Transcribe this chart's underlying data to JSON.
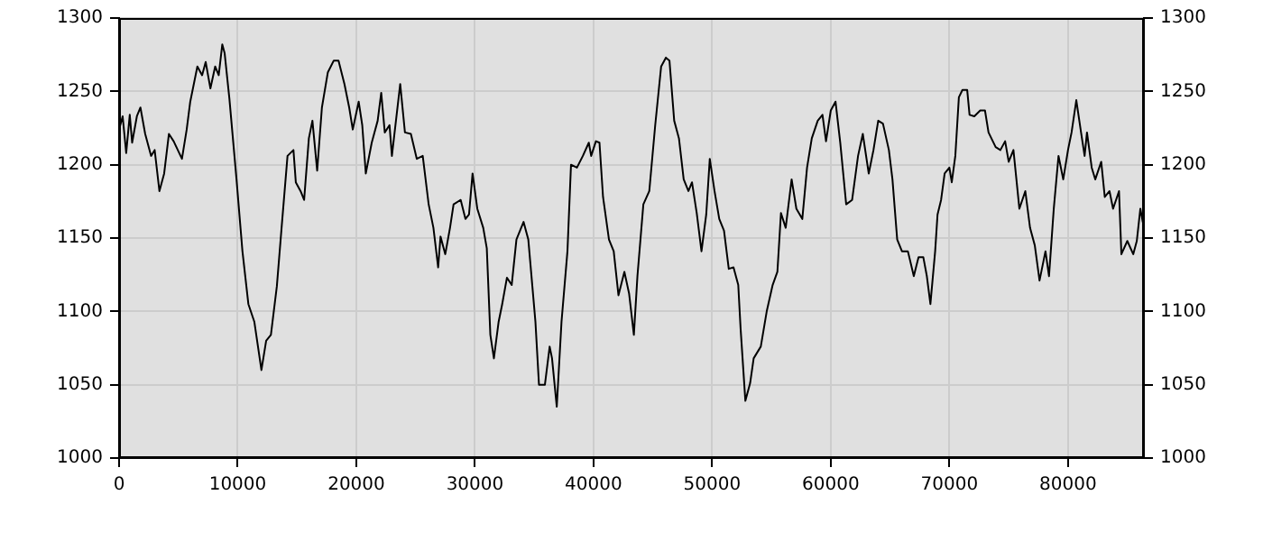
{
  "chart_data": {
    "type": "line",
    "xlim": [
      0,
      86400
    ],
    "xticks": [
      0,
      10000,
      20000,
      30000,
      40000,
      50000,
      60000,
      70000,
      80000
    ],
    "ylim": [
      1000,
      1300
    ],
    "yticks": [
      1000,
      1050,
      1100,
      1150,
      1200,
      1250,
      1300
    ],
    "y2lim": [
      1000,
      1300
    ],
    "y2ticks": [
      1000,
      1050,
      1100,
      1150,
      1200,
      1250,
      1300
    ],
    "grid": true,
    "legend": false,
    "marker": "none",
    "line_style": "solid",
    "x": [
      0,
      300,
      600,
      900,
      1100,
      1500,
      1800,
      2200,
      2700,
      3000,
      3400,
      3800,
      4200,
      4600,
      5300,
      5700,
      6000,
      6600,
      7000,
      7300,
      7700,
      8100,
      8400,
      8700,
      8900,
      9300,
      9900,
      10400,
      10900,
      11400,
      12000,
      12400,
      12800,
      13300,
      13700,
      14200,
      14700,
      14900,
      15300,
      15600,
      16000,
      16300,
      16700,
      17100,
      17600,
      18100,
      18500,
      19000,
      19400,
      19700,
      20200,
      20500,
      20800,
      21300,
      21800,
      22100,
      22400,
      22800,
      23000,
      23700,
      24100,
      24600,
      25100,
      25600,
      26100,
      26500,
      26900,
      27100,
      27500,
      27900,
      28200,
      28800,
      29200,
      29500,
      29800,
      30200,
      30700,
      31000,
      31300,
      31600,
      32000,
      32300,
      32700,
      33100,
      33500,
      34100,
      34500,
      35100,
      35400,
      35900,
      36300,
      36500,
      36900,
      37300,
      37800,
      38100,
      38600,
      39100,
      39600,
      39800,
      40200,
      40500,
      40800,
      41300,
      41700,
      42100,
      42600,
      43000,
      43400,
      43700,
      44200,
      44700,
      45200,
      45700,
      46100,
      46400,
      46800,
      47200,
      47600,
      48000,
      48300,
      48700,
      49100,
      49500,
      49800,
      50200,
      50600,
      51000,
      51400,
      51800,
      52200,
      52400,
      52800,
      53200,
      53500,
      54100,
      54600,
      55100,
      55500,
      55800,
      56200,
      56700,
      57100,
      57600,
      58000,
      58400,
      58900,
      59300,
      59600,
      60000,
      60400,
      60800,
      61300,
      61800,
      62300,
      62700,
      63200,
      63600,
      64000,
      64400,
      64900,
      65200,
      65600,
      66000,
      66500,
      67000,
      67400,
      67800,
      68100,
      68400,
      68800,
      69000,
      69300,
      69600,
      70000,
      70200,
      70500,
      70800,
      71100,
      71500,
      71700,
      72100,
      72600,
      73000,
      73300,
      73900,
      74300,
      74700,
      75000,
      75400,
      75900,
      76400,
      76800,
      77200,
      77600,
      78100,
      78400,
      78800,
      79200,
      79600,
      80000,
      80300,
      80700,
      81100,
      81400,
      81600,
      82000,
      82300,
      82800,
      83100,
      83500,
      83800,
      84300,
      84500,
      85000,
      85500,
      85800,
      86100,
      86300,
      86400
    ],
    "series": [
      {
        "color": "#000000",
        "values": [
          1224,
          1233,
          1208,
          1234,
          1215,
          1233,
          1239,
          1221,
          1206,
          1210,
          1182,
          1194,
          1221,
          1216,
          1204,
          1224,
          1243,
          1267,
          1261,
          1270,
          1252,
          1267,
          1261,
          1282,
          1276,
          1245,
          1190,
          1141,
          1105,
          1093,
          1060,
          1080,
          1084,
          1117,
          1157,
          1206,
          1210,
          1188,
          1182,
          1176,
          1218,
          1230,
          1196,
          1239,
          1263,
          1271,
          1271,
          1255,
          1239,
          1224,
          1243,
          1227,
          1194,
          1215,
          1230,
          1249,
          1222,
          1227,
          1206,
          1255,
          1222,
          1221,
          1204,
          1206,
          1173,
          1157,
          1130,
          1151,
          1139,
          1157,
          1173,
          1176,
          1163,
          1166,
          1194,
          1170,
          1157,
          1143,
          1084,
          1068,
          1093,
          1105,
          1123,
          1118,
          1149,
          1161,
          1149,
          1093,
          1050,
          1050,
          1076,
          1068,
          1035,
          1093,
          1141,
          1200,
          1198,
          1206,
          1215,
          1206,
          1216,
          1215,
          1178,
          1149,
          1141,
          1111,
          1127,
          1112,
          1084,
          1124,
          1173,
          1182,
          1227,
          1267,
          1273,
          1271,
          1230,
          1218,
          1190,
          1182,
          1188,
          1167,
          1141,
          1166,
          1204,
          1182,
          1163,
          1155,
          1129,
          1130,
          1118,
          1088,
          1039,
          1051,
          1068,
          1076,
          1100,
          1118,
          1127,
          1167,
          1157,
          1190,
          1170,
          1163,
          1198,
          1218,
          1230,
          1234,
          1216,
          1237,
          1243,
          1215,
          1173,
          1176,
          1206,
          1221,
          1194,
          1210,
          1230,
          1228,
          1210,
          1190,
          1149,
          1141,
          1141,
          1124,
          1137,
          1137,
          1124,
          1105,
          1141,
          1166,
          1176,
          1194,
          1198,
          1188,
          1206,
          1246,
          1251,
          1251,
          1234,
          1233,
          1237,
          1237,
          1222,
          1212,
          1210,
          1216,
          1202,
          1210,
          1170,
          1182,
          1157,
          1145,
          1121,
          1141,
          1124,
          1170,
          1206,
          1190,
          1210,
          1222,
          1244,
          1222,
          1206,
          1222,
          1198,
          1190,
          1202,
          1178,
          1182,
          1170,
          1182,
          1139,
          1148,
          1139,
          1148,
          1170,
          1161,
          1170
        ]
      }
    ]
  }
}
